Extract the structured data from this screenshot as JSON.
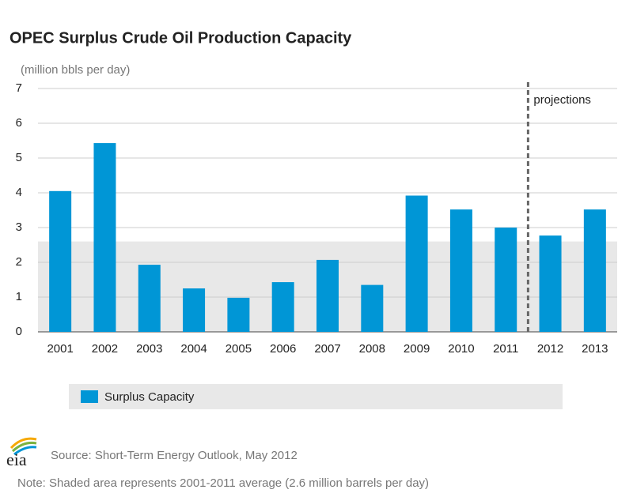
{
  "chart_data": {
    "type": "bar",
    "title": "OPEC Surplus Crude Oil Production Capacity",
    "subtitle": "(million bbls per day)",
    "categories": [
      "2001",
      "2002",
      "2003",
      "2004",
      "2005",
      "2006",
      "2007",
      "2008",
      "2009",
      "2010",
      "2011",
      "2012",
      "2013"
    ],
    "series": [
      {
        "name": "Surplus Capacity",
        "color": "#0096d6",
        "values": [
          4.05,
          5.43,
          1.93,
          1.25,
          0.98,
          1.43,
          2.07,
          1.35,
          3.92,
          3.52,
          3.0,
          2.77,
          3.52
        ]
      }
    ],
    "ylim": [
      0,
      7
    ],
    "yticks": [
      0,
      1,
      2,
      3,
      4,
      5,
      6,
      7
    ],
    "grid": true,
    "shaded_average": 2.6,
    "shade_color": "#e8e8e8",
    "annotation": {
      "text": "projections",
      "after_category": "2011"
    },
    "logo": "eia",
    "source": "Source: Short-Term Energy Outlook, May 2012",
    "note": "Note: Shaded area represents 2001-2011 average (2.6 million barrels per day)"
  }
}
